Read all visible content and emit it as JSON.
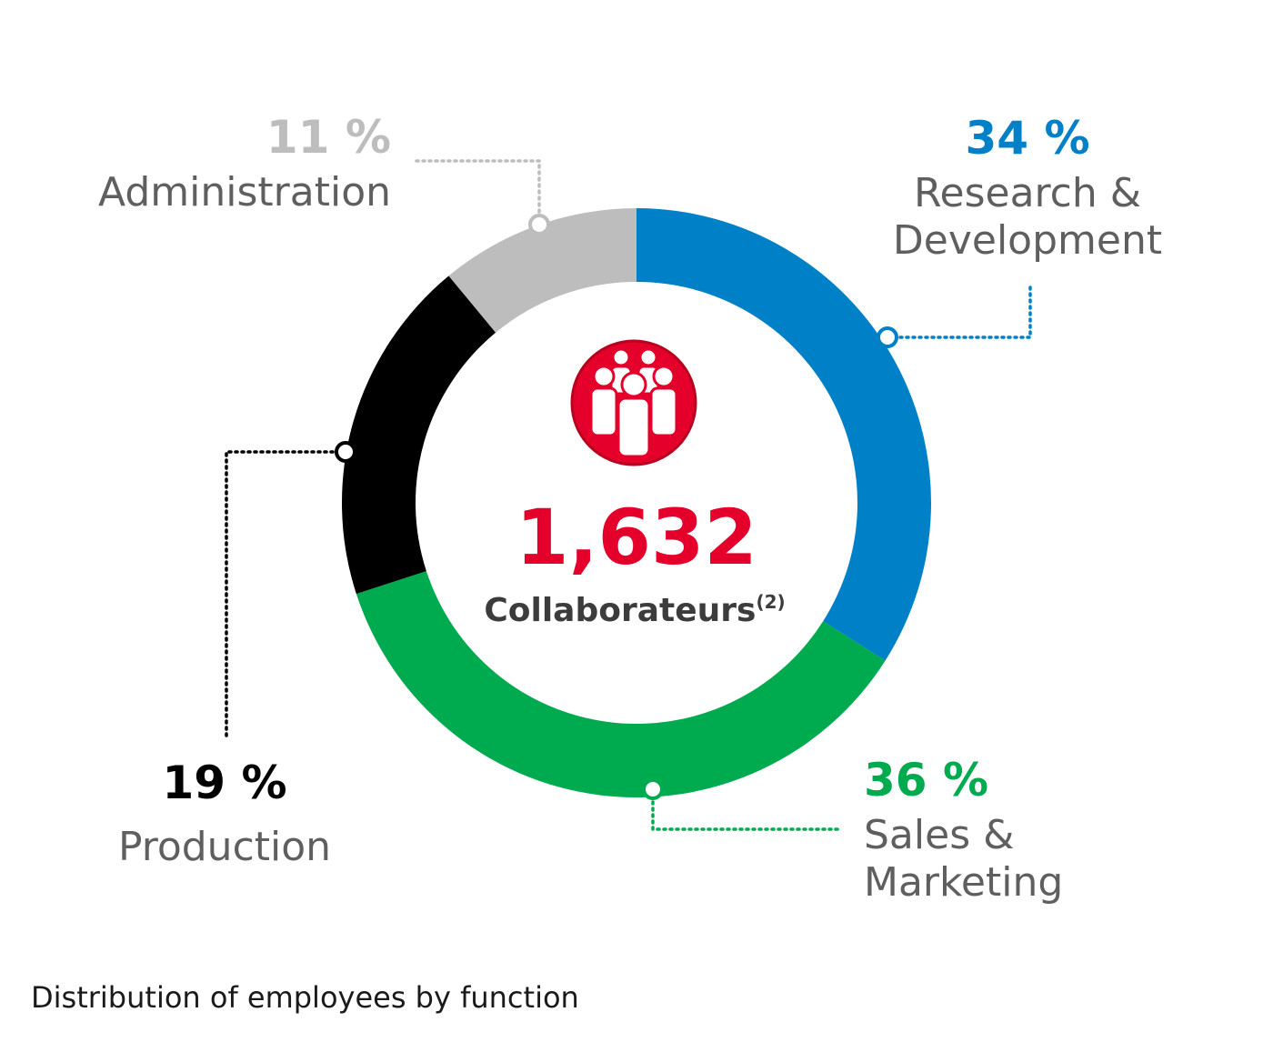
{
  "chart_data": {
    "type": "pie",
    "style": "donut",
    "categories": [
      "Research & Development",
      "Sales & Marketing",
      "Production",
      "Administration"
    ],
    "values": [
      34,
      36,
      19,
      11
    ],
    "unit": "%",
    "colors": [
      "#0080c6",
      "#00aa4f",
      "#000000",
      "#bdbdbd"
    ],
    "slices": [
      {
        "pct_label": "34 %",
        "label_lines": [
          "Research &",
          "Development"
        ],
        "color": "#0080c6"
      },
      {
        "pct_label": "36 %",
        "label_lines": [
          "Sales &",
          "Marketing"
        ],
        "color": "#00aa4f"
      },
      {
        "pct_label": "19 %",
        "label_lines": [
          "Production"
        ],
        "color": "#000000"
      },
      {
        "pct_label": "11 %",
        "label_lines": [
          "Administration"
        ],
        "color": "#bdbdbd"
      }
    ],
    "center": {
      "icon": "people-group-icon",
      "total": "1,632",
      "total_label": "Collaborateurs",
      "total_sup": "(2)",
      "accent": "#e5002b"
    }
  },
  "caption": "Distribution of employees by function"
}
